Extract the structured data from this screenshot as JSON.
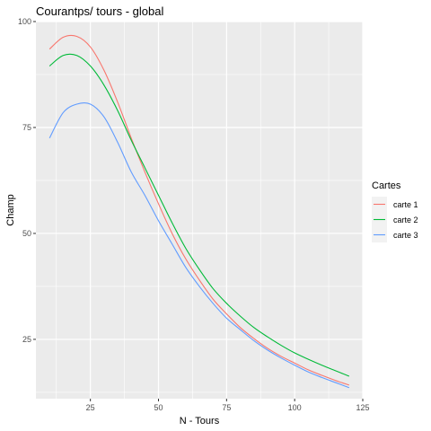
{
  "chart_data": {
    "type": "line",
    "title": "Courantps/ tours - global",
    "xlabel": "N - Tours",
    "ylabel": "Champ",
    "xlim": [
      5,
      125
    ],
    "ylim": [
      11,
      100
    ],
    "x_ticks": [
      25,
      50,
      75,
      100,
      125
    ],
    "y_ticks": [
      25,
      50,
      75,
      100
    ],
    "x_tick_labels": [
      "25",
      "50",
      "75",
      "100",
      "125"
    ],
    "y_tick_labels": [
      "25",
      "50",
      "75",
      "100"
    ],
    "grid": true,
    "background": "#ebebeb",
    "legend": {
      "title": "Cartes",
      "position": "right"
    },
    "x": [
      10,
      15,
      20,
      25,
      30,
      35,
      40,
      45,
      50,
      55,
      60,
      65,
      70,
      75,
      80,
      85,
      90,
      95,
      100,
      105,
      110,
      115,
      120
    ],
    "series": [
      {
        "name": "carte 1",
        "color": "#f8766d",
        "values": [
          93.5,
          96.3,
          96.5,
          94.0,
          88.5,
          81.0,
          72.5,
          64.5,
          57.0,
          50.0,
          44.0,
          39.0,
          34.5,
          31.0,
          27.8,
          25.2,
          22.9,
          21.0,
          19.4,
          17.8,
          16.5,
          15.3,
          14.2
        ]
      },
      {
        "name": "carte 2",
        "color": "#00ba38",
        "values": [
          89.5,
          92.0,
          92.0,
          89.5,
          85.0,
          79.0,
          72.0,
          65.5,
          59.0,
          52.5,
          46.5,
          41.5,
          37.0,
          33.5,
          30.5,
          27.8,
          25.6,
          23.6,
          21.8,
          20.3,
          18.9,
          17.6,
          16.3
        ]
      },
      {
        "name": "carte 3",
        "color": "#619cff",
        "values": [
          72.5,
          78.5,
          80.5,
          80.5,
          77.5,
          71.5,
          64.5,
          59.0,
          53.0,
          47.5,
          42.0,
          37.5,
          33.5,
          30.0,
          27.3,
          24.7,
          22.5,
          20.6,
          18.9,
          17.3,
          16.0,
          14.8,
          13.6
        ]
      }
    ]
  }
}
